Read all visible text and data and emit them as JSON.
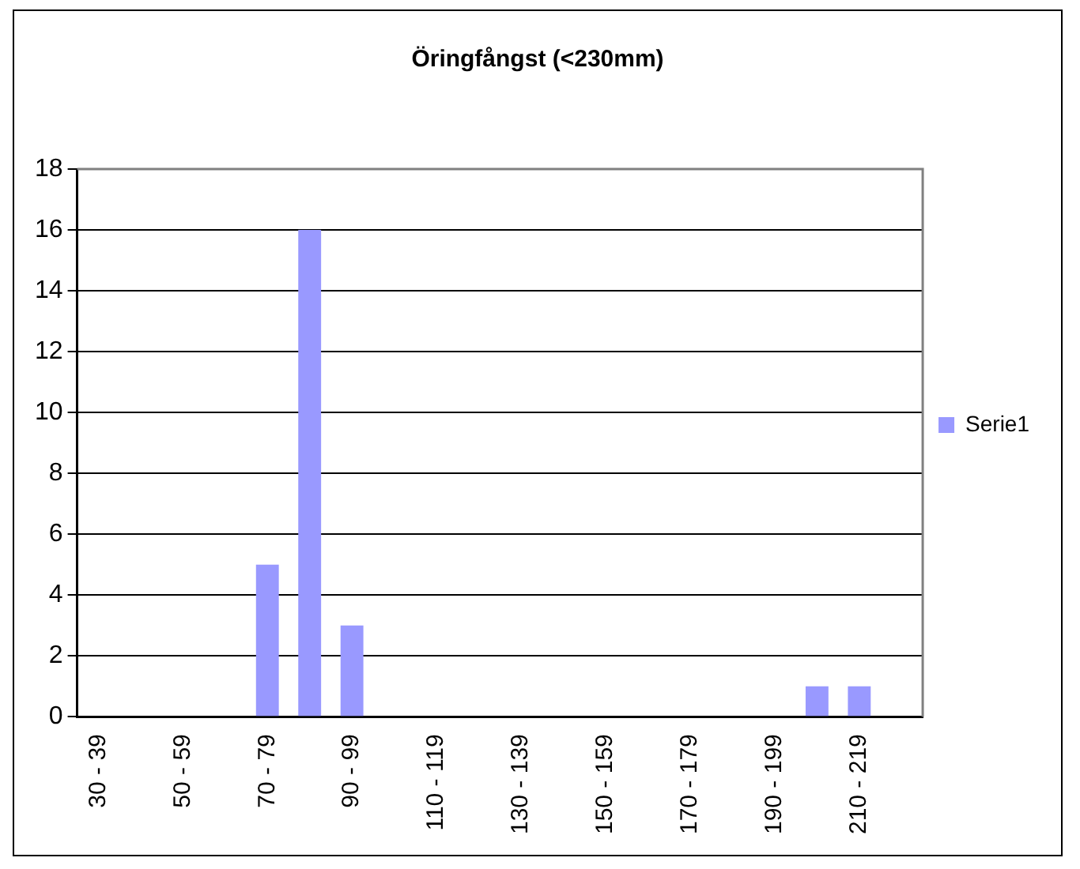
{
  "chart_data": {
    "type": "bar",
    "title": "Öringfångst (<230mm)",
    "categories": [
      "30 - 39",
      null,
      "50 - 59",
      null,
      "70 - 79",
      null,
      "90 - 99",
      null,
      "110 - 119",
      null,
      "130 - 139",
      null,
      "150 - 159",
      null,
      "170 - 179",
      null,
      "190 - 199",
      null,
      "210 - 219",
      null
    ],
    "series": [
      {
        "name": "Serie1",
        "color": "#9999ff",
        "values": [
          0,
          0,
          0,
          0,
          5,
          16,
          3,
          0,
          0,
          0,
          0,
          0,
          0,
          0,
          0,
          0,
          0,
          1,
          1,
          0
        ]
      }
    ],
    "ylim": [
      0,
      18
    ],
    "yticks": [
      0,
      2,
      4,
      6,
      8,
      10,
      12,
      14,
      16,
      18
    ],
    "grid": "y",
    "legend": "right"
  }
}
